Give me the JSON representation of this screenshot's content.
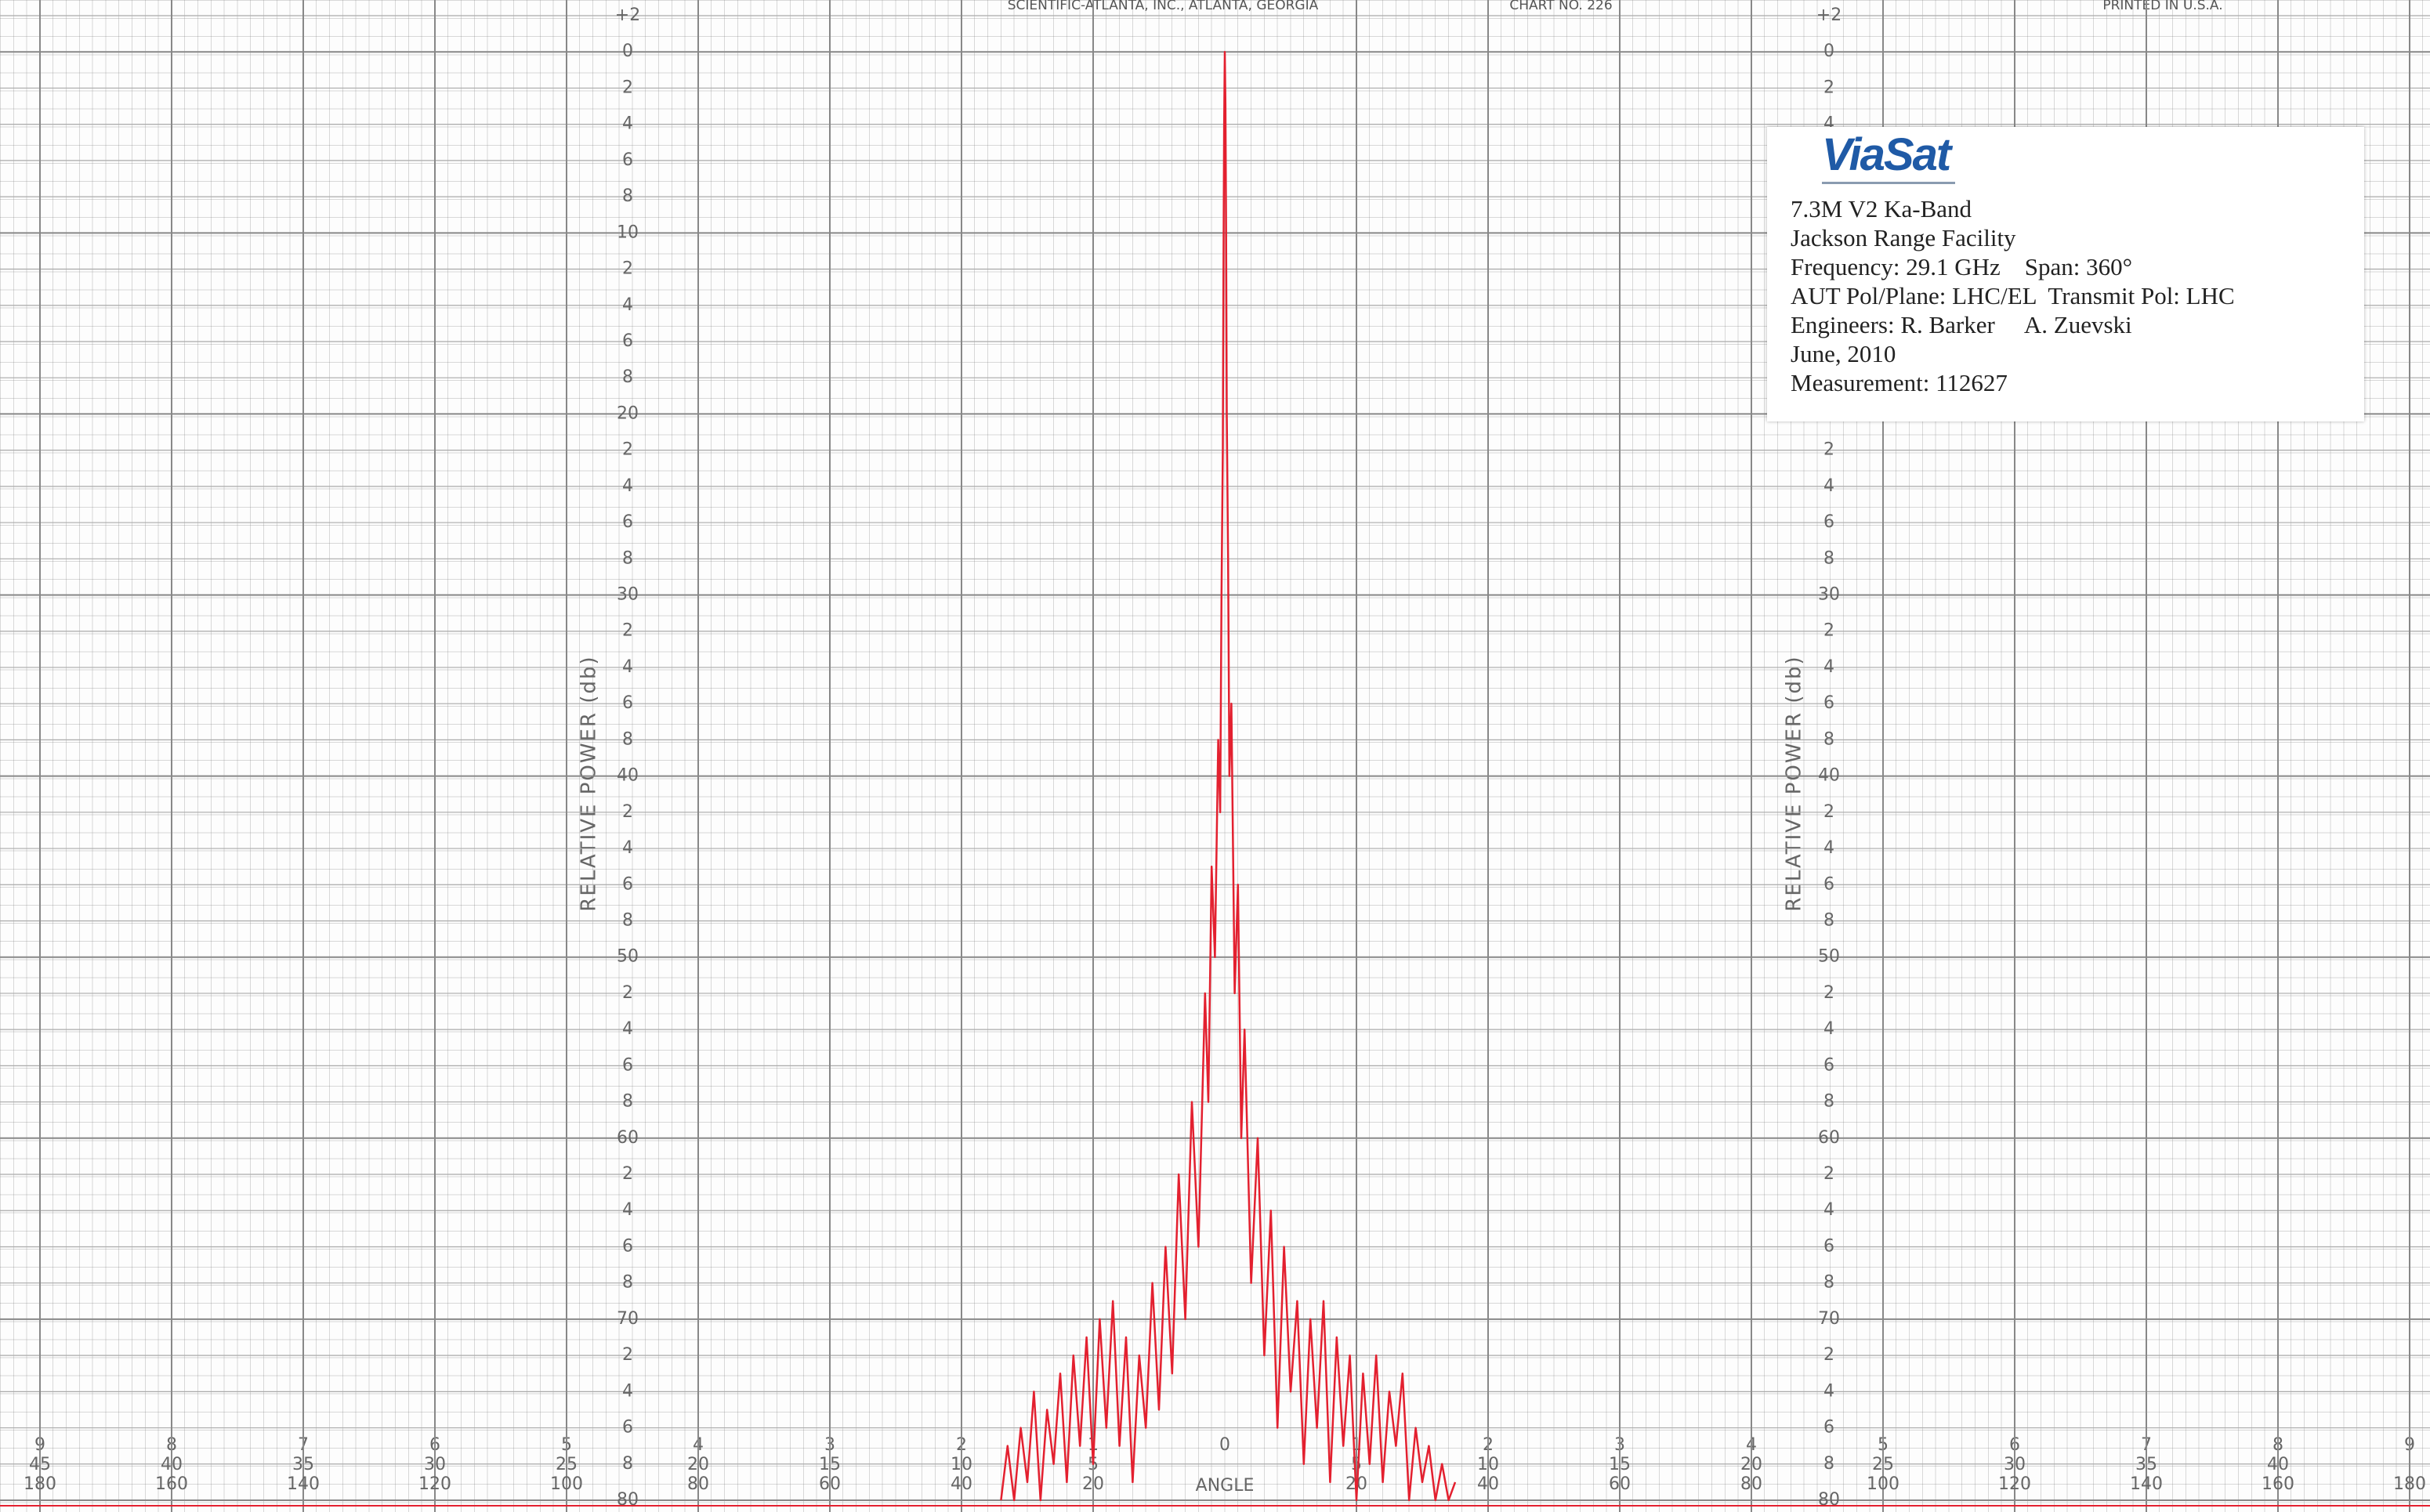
{
  "chart_data": {
    "type": "line",
    "publisher": "SCIENTIFIC-ATLANTA, INC., ATLANTA, GEORGIA",
    "chart_number": "CHART NO. 226",
    "printed": "PRINTED IN U.S.A.",
    "y_label": "RELATIVE POWER (db)",
    "x_label": "ANGLE",
    "color": "#e3202f",
    "y_inverted": true,
    "grid": true,
    "xlim": [
      -180,
      180
    ],
    "ylim": [
      -2,
      80
    ],
    "yticks": [
      {
        "value": -2,
        "label": "+2"
      },
      0,
      2,
      4,
      6,
      8,
      10,
      {
        "value": 12,
        "label": "2"
      },
      {
        "value": 14,
        "label": "4"
      },
      {
        "value": 16,
        "label": "6"
      },
      {
        "value": 18,
        "label": "8"
      },
      20,
      {
        "value": 22,
        "label": "2"
      },
      {
        "value": 24,
        "label": "4"
      },
      {
        "value": 26,
        "label": "6"
      },
      {
        "value": 28,
        "label": "8"
      },
      30,
      {
        "value": 32,
        "label": "2"
      },
      {
        "value": 34,
        "label": "4"
      },
      {
        "value": 36,
        "label": "6"
      },
      {
        "value": 38,
        "label": "8"
      },
      40,
      {
        "value": 42,
        "label": "2"
      },
      {
        "value": 44,
        "label": "4"
      },
      {
        "value": 46,
        "label": "6"
      },
      {
        "value": 48,
        "label": "8"
      },
      50,
      {
        "value": 52,
        "label": "2"
      },
      {
        "value": 54,
        "label": "4"
      },
      {
        "value": 56,
        "label": "6"
      },
      {
        "value": 58,
        "label": "8"
      },
      60,
      {
        "value": 62,
        "label": "2"
      },
      {
        "value": 64,
        "label": "4"
      },
      {
        "value": 66,
        "label": "6"
      },
      {
        "value": 68,
        "label": "8"
      },
      70,
      {
        "value": 72,
        "label": "2"
      },
      {
        "value": 74,
        "label": "4"
      },
      {
        "value": 76,
        "label": "6"
      },
      {
        "value": 78,
        "label": "8"
      },
      80
    ],
    "xticks": [
      {
        "value": -180,
        "label": "180"
      },
      {
        "value": -160,
        "label": "160"
      },
      {
        "value": -140,
        "label": "140"
      },
      {
        "value": -120,
        "label": "120"
      },
      {
        "value": -100,
        "label": "100"
      },
      {
        "value": -80,
        "label": "80"
      },
      {
        "value": -60,
        "label": "60"
      },
      {
        "value": -40,
        "label": "40"
      },
      {
        "value": -20,
        "label": "20"
      },
      20,
      40,
      60,
      80,
      100,
      120,
      140,
      160,
      180
    ],
    "xticks_row1": [
      {
        "value": -180,
        "label": "9"
      },
      {
        "value": -160,
        "label": "8"
      },
      {
        "value": -140,
        "label": "7"
      },
      {
        "value": -120,
        "label": "6"
      },
      {
        "value": -100,
        "label": "5"
      },
      {
        "value": -80,
        "label": "4"
      },
      {
        "value": -60,
        "label": "3"
      },
      {
        "value": -40,
        "label": "2"
      },
      {
        "value": -20,
        "label": "1"
      },
      0,
      {
        "value": 20,
        "label": "1"
      },
      {
        "value": 40,
        "label": "2"
      },
      {
        "value": 60,
        "label": "3"
      },
      {
        "value": 80,
        "label": "4"
      },
      {
        "value": 100,
        "label": "5"
      },
      {
        "value": 120,
        "label": "6"
      },
      {
        "value": 140,
        "label": "7"
      },
      {
        "value": 160,
        "label": "8"
      },
      {
        "value": 180,
        "label": "9"
      }
    ],
    "xticks_row2": [
      {
        "value": -180,
        "label": "45"
      },
      {
        "value": -160,
        "label": "40"
      },
      {
        "value": -140,
        "label": "35"
      },
      {
        "value": -120,
        "label": "30"
      },
      {
        "value": -100,
        "label": "25"
      },
      {
        "value": -80,
        "label": "20"
      },
      {
        "value": -60,
        "label": "15"
      },
      {
        "value": -40,
        "label": "10"
      },
      {
        "value": -20,
        "label": "5"
      },
      {
        "value": 20,
        "label": "5"
      },
      {
        "value": 40,
        "label": "10"
      },
      {
        "value": 60,
        "label": "15"
      },
      {
        "value": 80,
        "label": "20"
      },
      {
        "value": 100,
        "label": "25"
      },
      {
        "value": 120,
        "label": "30"
      },
      {
        "value": 140,
        "label": "35"
      },
      {
        "value": 160,
        "label": "40"
      }
    ],
    "x": [
      -34,
      -33,
      -32,
      -31,
      -30,
      -29,
      -28,
      -27,
      -26,
      -25,
      -24,
      -23,
      -22,
      -21,
      -20,
      -19,
      -18,
      -17,
      -16,
      -15,
      -14,
      -13,
      -12,
      -11,
      -10,
      -9,
      -8,
      -7,
      -6,
      -5,
      -4,
      -3,
      -2.5,
      -2,
      -1.5,
      -1,
      -0.7,
      -0.5,
      -0.3,
      -0.2,
      -0.1,
      0,
      0.1,
      0.2,
      0.3,
      0.5,
      0.7,
      1,
      1.5,
      2,
      2.5,
      3,
      4,
      5,
      6,
      7,
      8,
      9,
      10,
      11,
      12,
      13,
      14,
      15,
      16,
      17,
      18,
      19,
      20,
      21,
      22,
      23,
      24,
      25,
      26,
      27,
      28,
      29,
      30,
      31,
      32,
      33,
      34,
      35
    ],
    "values": [
      80,
      77,
      80,
      76,
      79,
      74,
      80,
      75,
      78,
      73,
      79,
      72,
      77,
      71,
      78,
      70,
      76,
      69,
      77,
      71,
      79,
      72,
      76,
      68,
      75,
      66,
      73,
      62,
      70,
      58,
      66,
      52,
      58,
      45,
      50,
      38,
      42,
      30,
      22,
      12,
      4,
      0,
      3,
      10,
      20,
      28,
      40,
      36,
      52,
      46,
      60,
      54,
      68,
      60,
      72,
      64,
      76,
      66,
      74,
      69,
      78,
      70,
      76,
      69,
      79,
      71,
      77,
      72,
      80,
      73,
      78,
      72,
      79,
      74,
      77,
      73,
      80,
      76,
      79,
      77,
      80,
      78,
      80,
      79
    ],
    "annotation": {
      "logo": "ViaSat",
      "lines": [
        "7.3M V2 Ka-Band",
        "Jackson Range Facility",
        "Frequency: 29.1 GHz    Span: 360°",
        "AUT Pol/Plane: LHC/EL  Transmit Pol: LHC",
        "Engineers: R. Barker     A. Zuevski",
        "June, 2010",
        "Measurement: 112627"
      ]
    }
  }
}
